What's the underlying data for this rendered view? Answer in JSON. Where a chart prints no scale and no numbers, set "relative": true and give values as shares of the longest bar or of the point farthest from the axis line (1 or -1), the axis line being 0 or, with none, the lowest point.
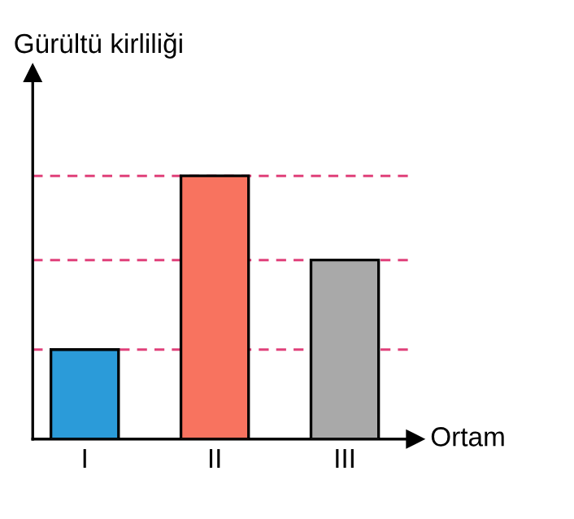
{
  "chart_data": {
    "type": "bar",
    "relative": true,
    "ylabel": "Gürültü kirliliği",
    "xlabel": "Ortam",
    "categories": [
      "I",
      "II",
      "III"
    ],
    "values": [
      0.34,
      1.0,
      0.68
    ],
    "colors": [
      "#2b9bd9",
      "#f8735f",
      "#a9a9a9"
    ],
    "ref_lines": [
      {
        "axis": "y",
        "value": 0.34,
        "color": "#e0407a",
        "line_style": "dashed"
      },
      {
        "axis": "y",
        "value": 0.68,
        "color": "#e0407a",
        "line_style": "dashed"
      },
      {
        "axis": "y",
        "value": 1.0,
        "color": "#e0407a",
        "line_style": "dashed"
      }
    ]
  }
}
